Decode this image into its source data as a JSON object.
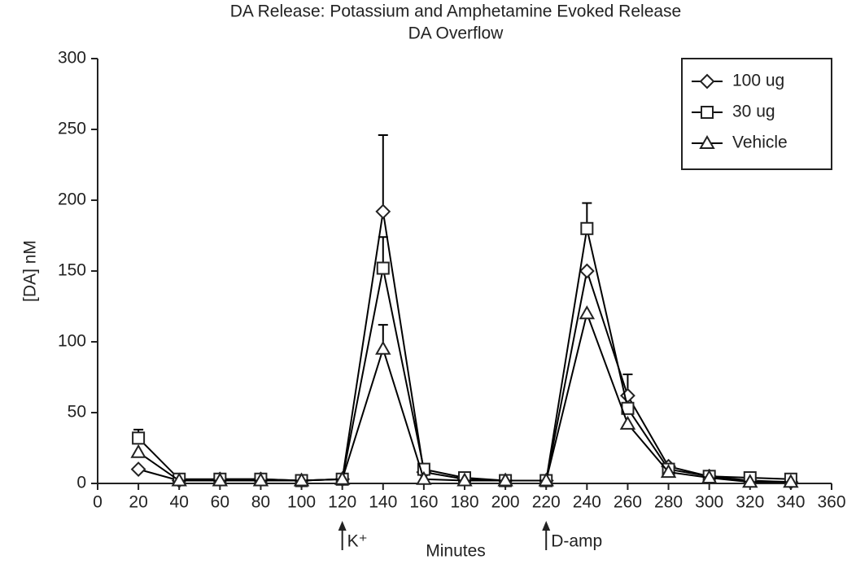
{
  "chart_data": {
    "type": "line",
    "title": "DA Release: Potassium and Amphetamine Evoked Release",
    "subtitle": "DA Overflow",
    "x_label": "Minutes",
    "y_label": "[DA] nM",
    "x": [
      20,
      40,
      60,
      80,
      100,
      120,
      140,
      160,
      180,
      200,
      220,
      240,
      260,
      280,
      300,
      320,
      340
    ],
    "series": [
      {
        "name": "100 ug",
        "color": "#000000",
        "marker": "diamond",
        "values": [
          10,
          2,
          3,
          3,
          2,
          3,
          192,
          8,
          3,
          2,
          2,
          150,
          62,
          12,
          5,
          2,
          1
        ],
        "errors": [
          null,
          null,
          null,
          null,
          null,
          null,
          54,
          null,
          null,
          null,
          null,
          null,
          15,
          null,
          null,
          null,
          null
        ]
      },
      {
        "name": "30 ug",
        "color": "#000000",
        "marker": "square",
        "values": [
          32,
          3,
          3,
          3,
          2,
          3,
          152,
          10,
          4,
          2,
          2,
          180,
          53,
          10,
          5,
          4,
          3
        ],
        "errors": [
          6,
          null,
          null,
          null,
          null,
          null,
          22,
          null,
          null,
          null,
          null,
          18,
          null,
          null,
          null,
          null,
          null
        ]
      },
      {
        "name": "Vehicle",
        "color": "#000000",
        "marker": "triangle",
        "values": [
          22,
          2,
          2,
          2,
          2,
          3,
          95,
          3,
          2,
          2,
          2,
          120,
          42,
          8,
          4,
          1,
          1
        ],
        "errors": [
          null,
          null,
          null,
          null,
          null,
          null,
          17,
          null,
          null,
          null,
          null,
          null,
          null,
          null,
          null,
          null,
          null
        ]
      }
    ],
    "annotations": [
      {
        "x": 120,
        "text": "K⁺"
      },
      {
        "x": 220,
        "text": "D-amp"
      }
    ],
    "xlim": [
      0,
      360
    ],
    "xticks": [
      0,
      20,
      40,
      60,
      80,
      100,
      120,
      140,
      160,
      180,
      200,
      220,
      240,
      260,
      280,
      300,
      320,
      340,
      360
    ],
    "ylim": [
      0,
      300
    ],
    "yticks": [
      0,
      50,
      100,
      150,
      200,
      250,
      300
    ],
    "grid": false,
    "legend": "upper right"
  }
}
